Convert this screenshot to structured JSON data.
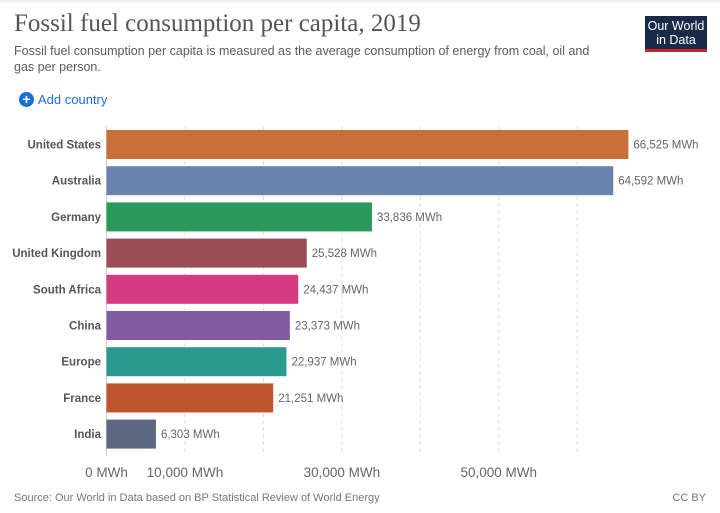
{
  "header": {
    "title": "Fossil fuel consumption per capita, 2019",
    "subtitle": "Fossil fuel consumption per capita is measured as the average consumption of energy from coal, oil and gas per person.",
    "logo": "Our World in Data",
    "add_country": "Add country"
  },
  "footer": {
    "source": "Source: Our World in Data based on BP Statistical Review of World Energy",
    "license": "CC BY"
  },
  "chart_data": {
    "type": "bar",
    "orientation": "horizontal",
    "unit": "MWh",
    "categories": [
      "United States",
      "Australia",
      "Germany",
      "United Kingdom",
      "South Africa",
      "China",
      "Europe",
      "France",
      "India"
    ],
    "values": [
      66525,
      64592,
      33836,
      25528,
      24437,
      23373,
      22937,
      21251,
      6303
    ],
    "value_labels": [
      "66,525 MWh",
      "64,592 MWh",
      "33,836 MWh",
      "25,528 MWh",
      "24,437 MWh",
      "23,373 MWh",
      "22,937 MWh",
      "21,251 MWh",
      "6,303 MWh"
    ],
    "colors": [
      "#c8703a",
      "#6a82ae",
      "#2a9a5c",
      "#9c4c55",
      "#d63a80",
      "#8459a3",
      "#2a9a8f",
      "#bf552d",
      "#5b6880"
    ],
    "xlim": [
      0,
      70000
    ],
    "gridlines": [
      10000,
      20000,
      30000,
      40000,
      50000,
      60000
    ],
    "ticks": [
      {
        "value": 0,
        "label": "0 MWh"
      },
      {
        "value": 10000,
        "label": "10,000 MWh"
      },
      {
        "value": 30000,
        "label": "30,000 MWh"
      },
      {
        "value": 50000,
        "label": "50,000 MWh"
      }
    ],
    "grid": true
  }
}
